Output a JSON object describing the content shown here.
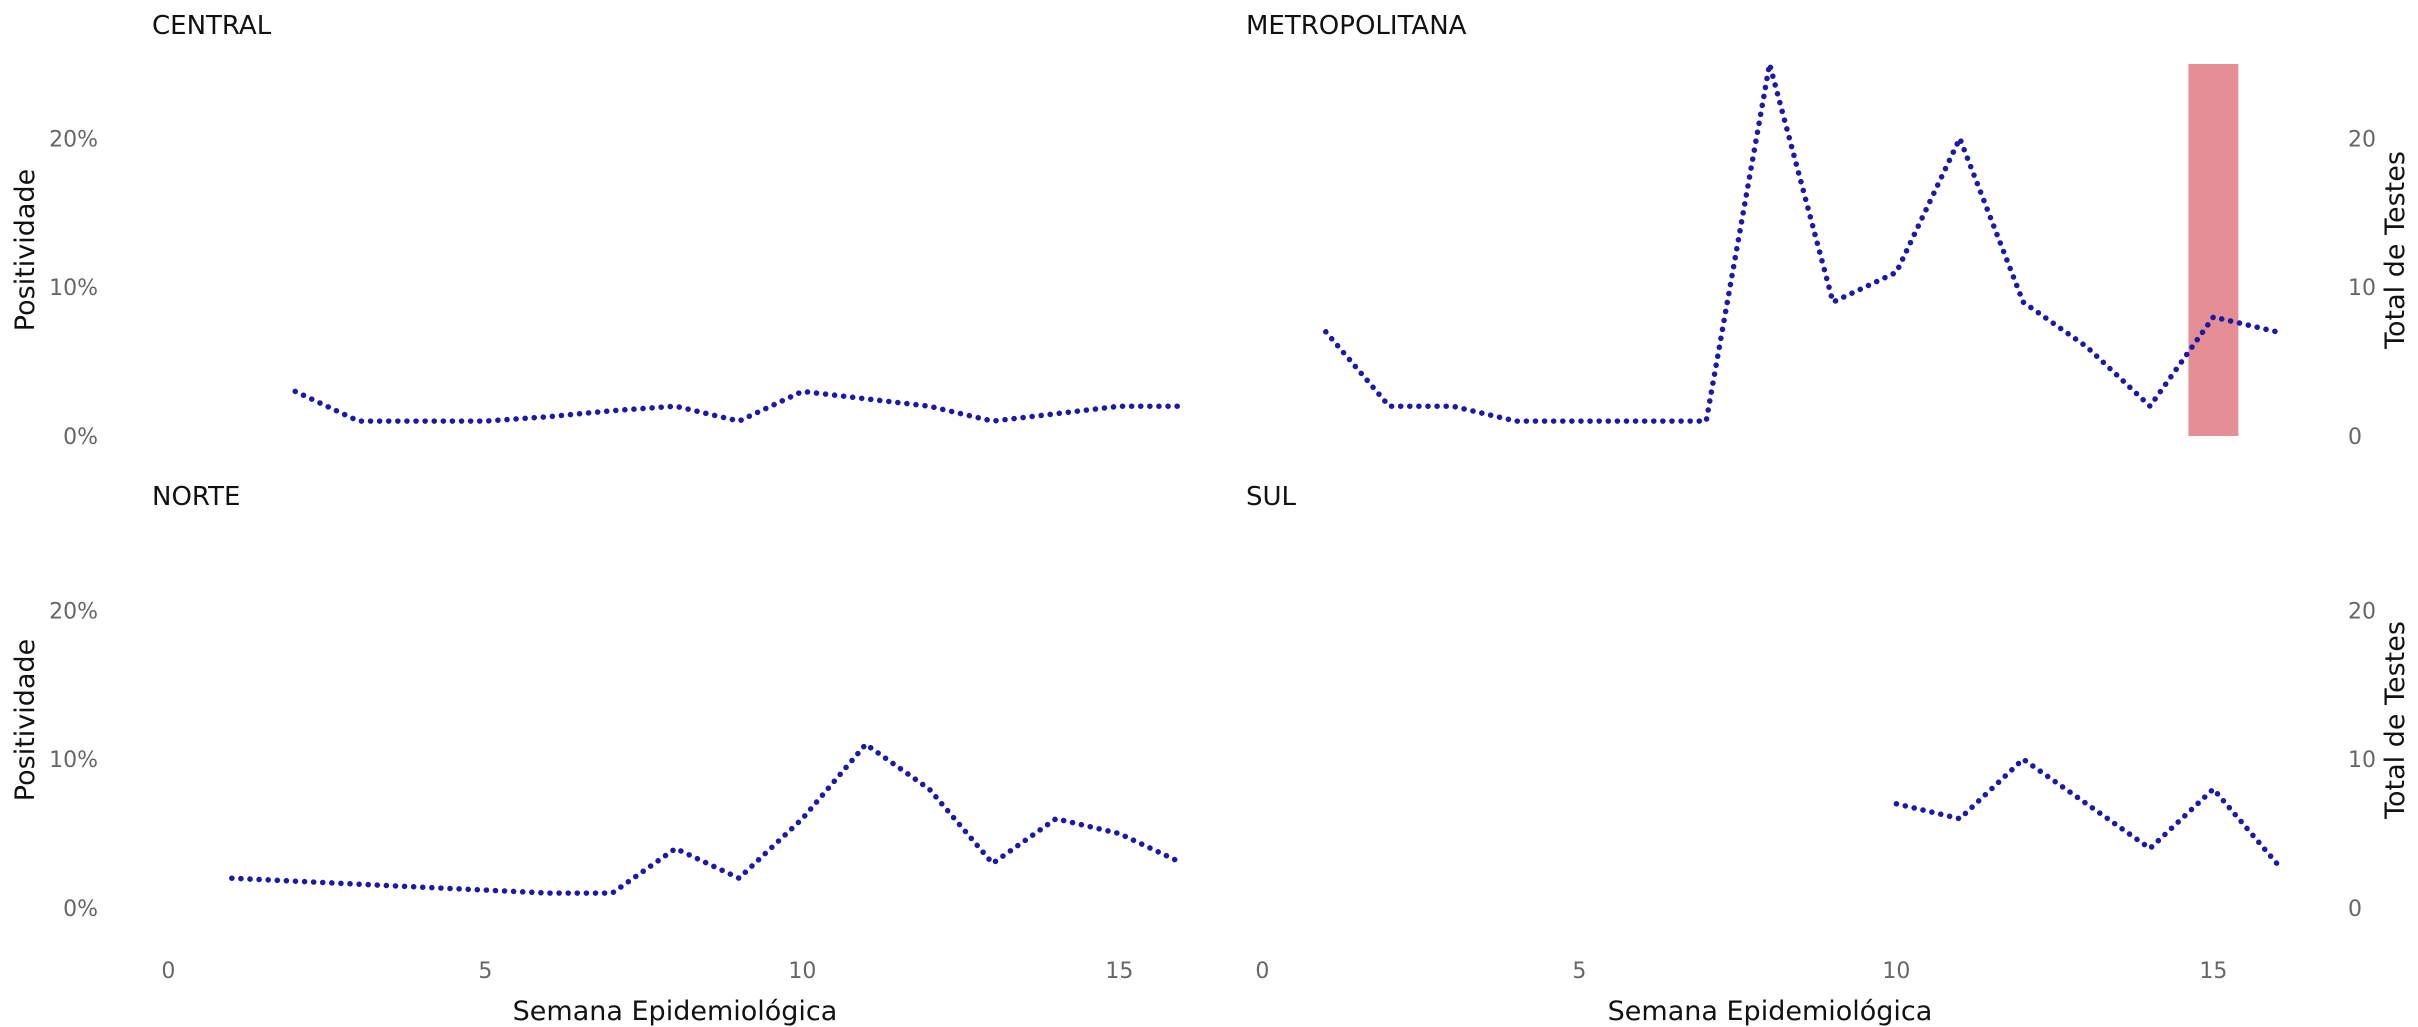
{
  "chart_data": {
    "type": "line",
    "xlabel": "Semana Epidemiológica",
    "ylabel_left": "Positividade",
    "ylabel_right": "Total de Testes",
    "x_ticks": [
      "0",
      "5",
      "10",
      "15"
    ],
    "x_tick_values": [
      0,
      5,
      10,
      15
    ],
    "y_ticks_left": [
      "0%",
      "10%",
      "20%"
    ],
    "y_tick_values_left": [
      0,
      10,
      20
    ],
    "y_ticks_right": [
      "0",
      "10",
      "20"
    ],
    "y_tick_values_right": [
      0,
      10,
      20
    ],
    "xlim": [
      -0.3,
      16.5
    ],
    "ylim": [
      0,
      25
    ],
    "grid": false,
    "line_color": "#1a1aa6",
    "bar_color": "#e58e95",
    "panels": [
      {
        "title": "CENTRAL",
        "series": [
          {
            "x": [
              2,
              3,
              4,
              5,
              6,
              7,
              8,
              9,
              10,
              11,
              12,
              13,
              14,
              15,
              16
            ],
            "values": [
              3,
              1,
              1,
              1,
              1.3,
              1.7,
              2,
              1,
              3,
              2.5,
              2,
              1,
              1.5,
              2,
              2
            ]
          }
        ],
        "bars": []
      },
      {
        "title": "METROPOLITANA",
        "series": [
          {
            "x": [
              1,
              2,
              3,
              4,
              5,
              6,
              7,
              8,
              9,
              10,
              11,
              12,
              13,
              14,
              15,
              16
            ],
            "values": [
              7,
              2,
              2,
              1,
              1,
              1,
              1,
              25,
              9,
              11,
              20,
              9,
              6,
              2,
              8,
              7
            ]
          }
        ],
        "bars": [
          {
            "x": 15,
            "value": 25
          }
        ]
      },
      {
        "title": "NORTE",
        "series": [
          {
            "x": [
              1,
              2,
              3,
              4,
              5,
              6,
              7,
              8,
              9,
              10,
              11,
              12,
              13,
              14,
              15,
              16
            ],
            "values": [
              2,
              1.8,
              1.6,
              1.4,
              1.2,
              1,
              1,
              4,
              2,
              6,
              11,
              8,
              3,
              6,
              5,
              3
            ]
          }
        ],
        "bars": []
      },
      {
        "title": "SUL",
        "series": [
          {
            "x": [
              10,
              11,
              12,
              13,
              14,
              15,
              16
            ],
            "values": [
              7,
              6,
              10,
              7,
              4,
              8,
              3
            ]
          }
        ],
        "bars": []
      }
    ]
  }
}
